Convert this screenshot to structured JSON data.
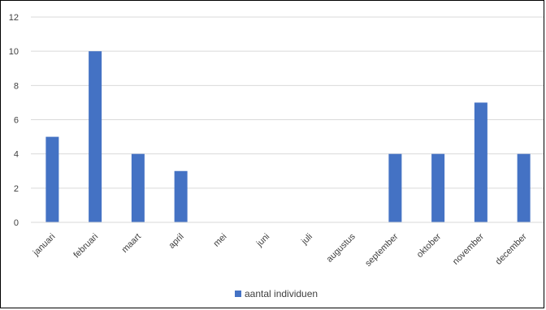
{
  "chart_data": {
    "type": "bar",
    "categories": [
      "januari",
      "februari",
      "maart",
      "april",
      "mei",
      "juni",
      "juli",
      "augustus",
      "september",
      "oktober",
      "november",
      "december"
    ],
    "series": [
      {
        "name": "aantal individuen",
        "values": [
          5,
          10,
          4,
          3,
          0,
          0,
          0,
          0,
          4,
          4,
          7,
          4
        ],
        "color": "#4472C4"
      }
    ],
    "y_ticks": [
      "0",
      "2",
      "4",
      "6",
      "8",
      "10",
      "12"
    ],
    "ylim": [
      0,
      12
    ],
    "grid": true,
    "gridline_color": "#d9d9d9",
    "legend_position": "bottom"
  }
}
